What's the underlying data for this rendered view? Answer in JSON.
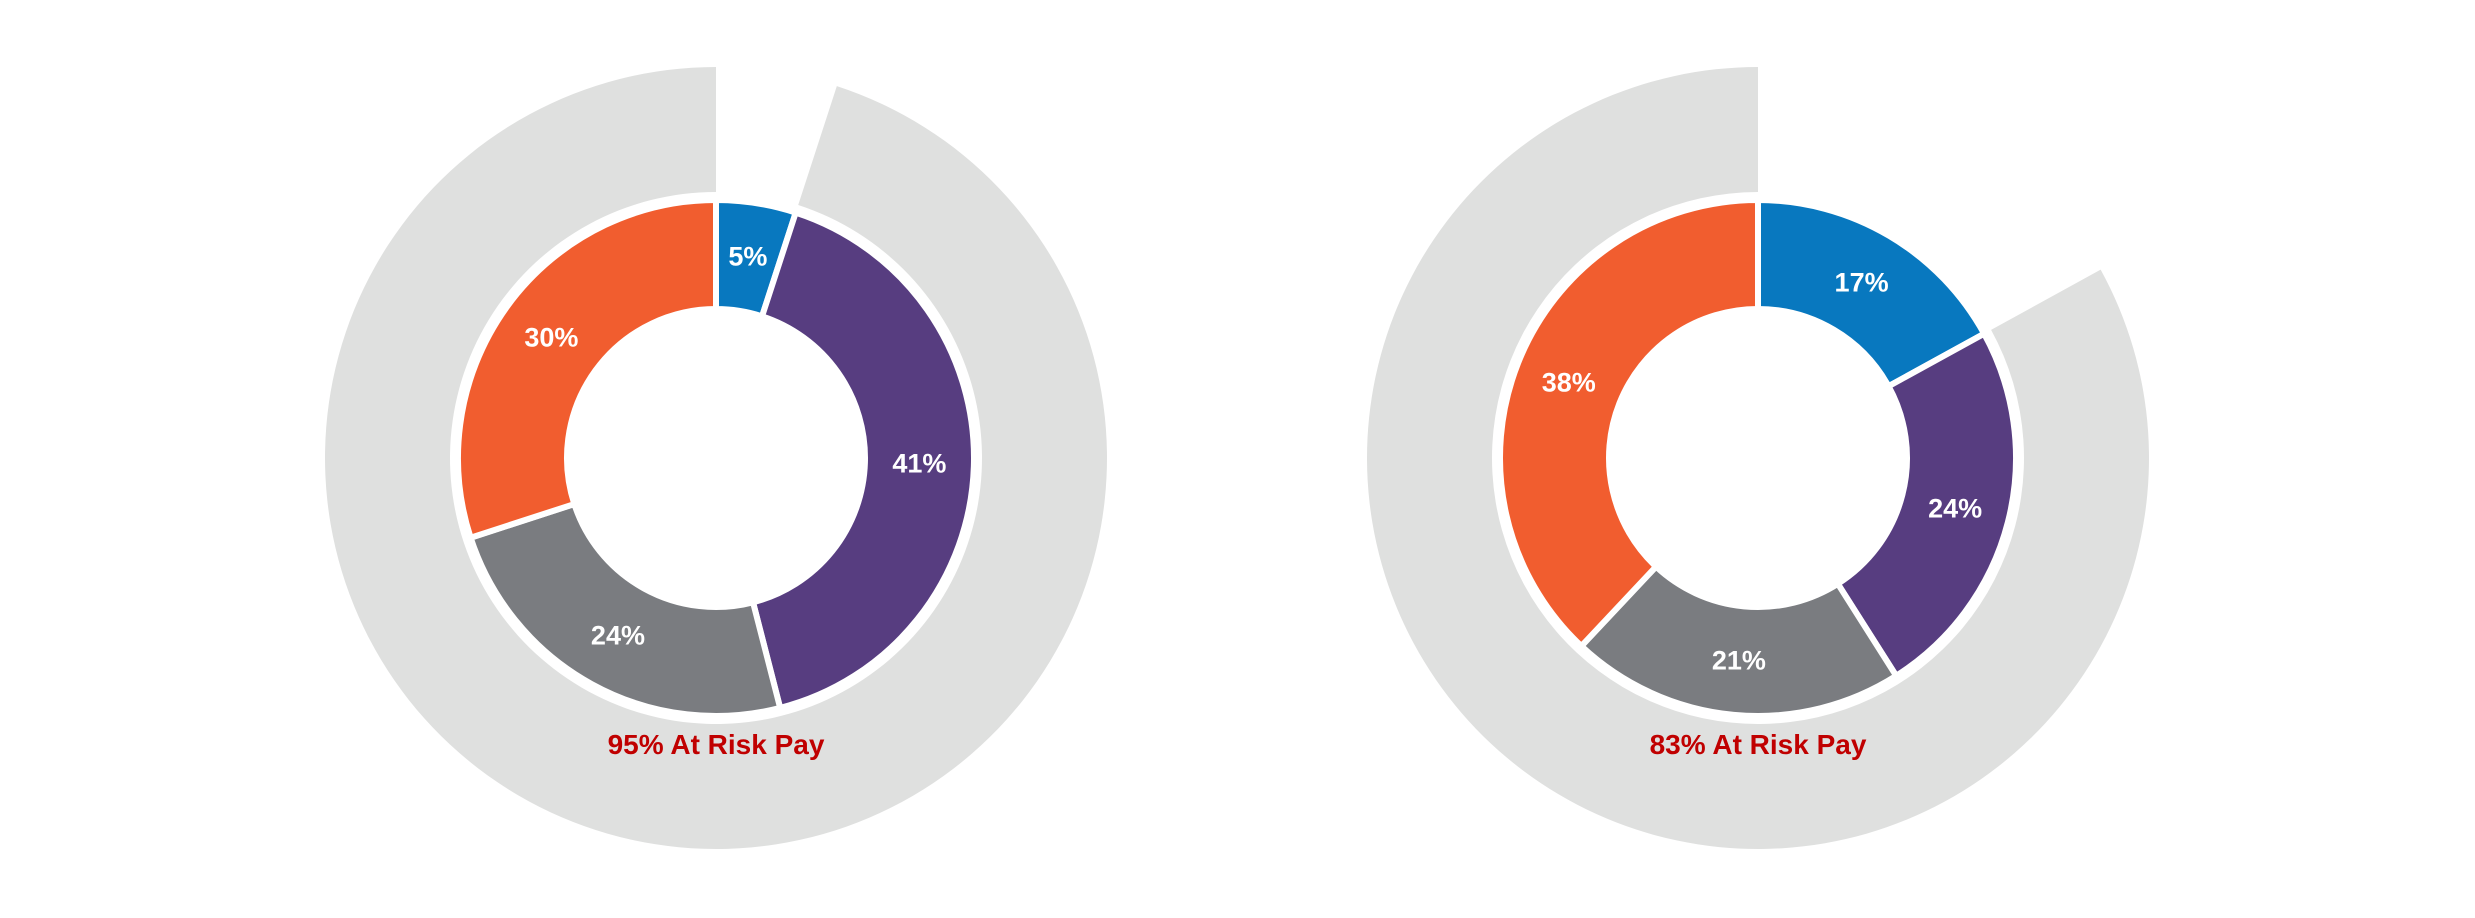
{
  "colors": {
    "blue": "#0878bf",
    "purple": "#573d80",
    "gray": "#7a7c80",
    "orange": "#f15d2f",
    "outer_ring": "#dfe0df",
    "risk_text": "#c00000"
  },
  "chart_data": [
    {
      "type": "pie",
      "subtype": "nested donut",
      "inner_ring": {
        "values": [
          5,
          41,
          24,
          30
        ],
        "labels": [
          "5%",
          "41%",
          "24%",
          "30%"
        ],
        "colors": [
          "#0878bf",
          "#573d80",
          "#7a7c80",
          "#f15d2f"
        ]
      },
      "outer_ring": {
        "value": 95,
        "color": "#dfe0df"
      },
      "annotation": "95% At Risk Pay",
      "legend": null,
      "title": ""
    },
    {
      "type": "pie",
      "subtype": "nested donut",
      "inner_ring": {
        "values": [
          17,
          24,
          21,
          38
        ],
        "labels": [
          "17%",
          "24%",
          "21%",
          "38%"
        ],
        "colors": [
          "#0878bf",
          "#573d80",
          "#7a7c80",
          "#f15d2f"
        ]
      },
      "outer_ring": {
        "value": 83,
        "color": "#dfe0df"
      },
      "annotation": "83% At Risk Pay",
      "legend": null,
      "title": ""
    }
  ],
  "charts": [
    {
      "risk_label": "95% At Risk Pay",
      "slices": [
        "5%",
        "41%",
        "24%",
        "30%"
      ]
    },
    {
      "risk_label": "83% At Risk Pay",
      "slices": [
        "17%",
        "24%",
        "21%",
        "38%"
      ]
    }
  ]
}
